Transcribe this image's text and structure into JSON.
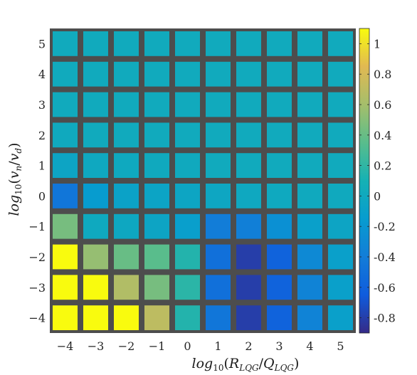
{
  "chart_data": {
    "type": "heatmap",
    "title": "",
    "xlabel": "log10(R_LQG/Q_LQG)",
    "ylabel": "log10(v_n/v_d)",
    "x": [
      -4,
      -3,
      -2,
      -1,
      0,
      1,
      2,
      3,
      4,
      5
    ],
    "y": [
      5,
      4,
      3,
      2,
      1,
      0,
      -1,
      -2,
      -3,
      -4
    ],
    "x_tick_labels": [
      "−4",
      "−3",
      "−2",
      "−1",
      "0",
      "1",
      "2",
      "3",
      "4",
      "5"
    ],
    "y_tick_labels": [
      "5",
      "4",
      "3",
      "2",
      "1",
      "0",
      "−1",
      "−2",
      "−3",
      "−4"
    ],
    "values": [
      [
        0.02,
        0.02,
        0.02,
        0.02,
        0.02,
        0.02,
        0.02,
        0.02,
        0.02,
        0.02
      ],
      [
        0.02,
        0.02,
        0.02,
        0.02,
        0.02,
        0.02,
        0.02,
        0.02,
        0.02,
        0.02
      ],
      [
        0.02,
        0.02,
        0.02,
        0.02,
        0.02,
        0.02,
        0.02,
        0.02,
        0.02,
        0.02
      ],
      [
        0.01,
        0.02,
        0.02,
        0.02,
        0.02,
        0.02,
        0.02,
        0.02,
        0.02,
        0.02
      ],
      [
        -0.05,
        -0.01,
        0.0,
        0.01,
        0.01,
        0.02,
        0.02,
        0.02,
        0.02,
        0.02
      ],
      [
        -0.45,
        -0.15,
        -0.08,
        -0.06,
        -0.04,
        -0.03,
        -0.01,
        0.0,
        0.01,
        0.01
      ],
      [
        0.45,
        0.0,
        -0.02,
        -0.05,
        -0.12,
        -0.4,
        -0.38,
        -0.25,
        -0.1,
        -0.05
      ],
      [
        1.1,
        0.55,
        0.4,
        0.35,
        0.15,
        -0.5,
        -0.8,
        -0.6,
        -0.3,
        -0.1
      ],
      [
        1.1,
        1.1,
        0.65,
        0.45,
        0.18,
        -0.5,
        -0.8,
        -0.6,
        -0.35,
        -0.1
      ],
      [
        1.1,
        1.1,
        1.1,
        0.7,
        0.15,
        -0.45,
        -0.8,
        -0.6,
        -0.35,
        -0.1
      ]
    ],
    "colorbar": {
      "range": [
        -0.9,
        1.1
      ],
      "ticks": [
        -0.8,
        -0.6,
        -0.4,
        -0.2,
        0,
        0.2,
        0.4,
        0.6,
        0.8,
        1
      ],
      "tick_labels": [
        "-0.8",
        "-0.6",
        "-0.4",
        "-0.2",
        "0",
        "0.2",
        "0.4",
        "0.6",
        "0.8",
        "1"
      ],
      "colormap": "parula"
    },
    "grid_color": "#4d4d4d"
  }
}
